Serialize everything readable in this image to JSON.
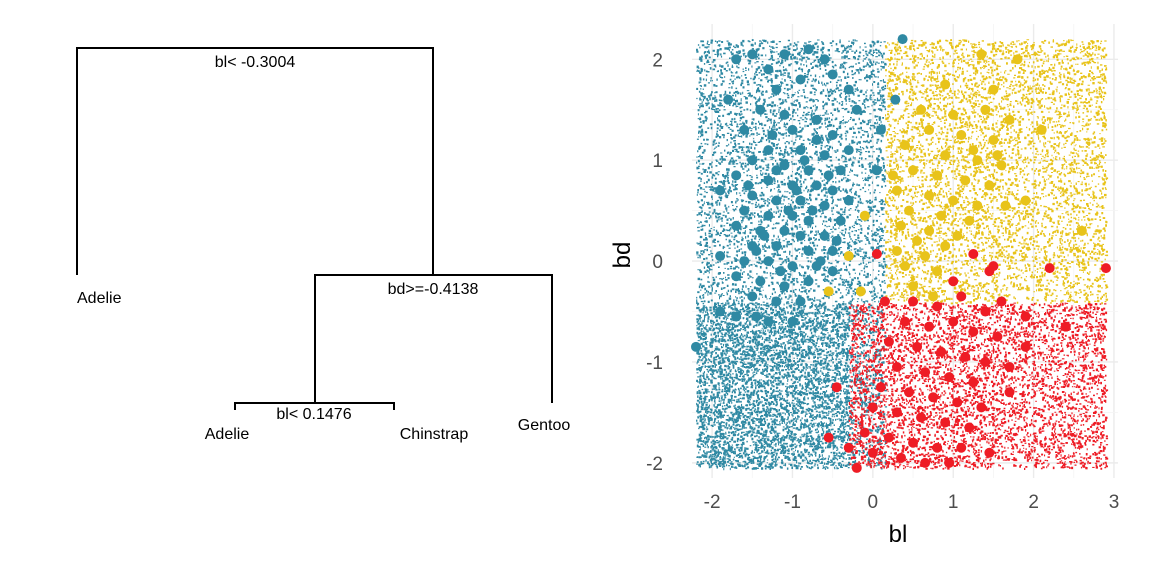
{
  "tree": {
    "splits": [
      {
        "id": "root",
        "label": "bl< -0.3004"
      },
      {
        "id": "right",
        "label": "bd>=-0.4138"
      },
      {
        "id": "left-of-right",
        "label": "bl< 0.1476"
      }
    ],
    "leaves": [
      {
        "id": "leaf-1",
        "label": "Adelie"
      },
      {
        "id": "leaf-2",
        "label": "Adelie"
      },
      {
        "id": "leaf-3",
        "label": "Chinstrap"
      },
      {
        "id": "leaf-4",
        "label": "Gentoo"
      }
    ]
  },
  "chart_data": {
    "type": "scatter",
    "xlabel": "bl",
    "ylabel": "bd",
    "xlim": [
      -2.25,
      3.05
    ],
    "ylim": [
      -2.15,
      2.35
    ],
    "x_ticks": [
      -2,
      -1,
      0,
      1,
      2,
      3
    ],
    "y_ticks": [
      -2,
      -1,
      0,
      1,
      2
    ],
    "x_tick_labels": [
      "-2",
      "-1",
      "0",
      "1",
      "2",
      "3"
    ],
    "y_tick_labels": [
      "-2",
      "-1",
      "0",
      "1",
      "2"
    ],
    "grid": true,
    "class_colors": {
      "Adelie": "#2f89a3",
      "Chinstrap": "#e8c31a",
      "Gentoo": "#ee1c25"
    },
    "regions": [
      {
        "class": "Adelie",
        "x": [
          -2.2,
          0.15
        ],
        "y": [
          -2.05,
          2.2
        ]
      },
      {
        "class": "Adelie",
        "x": [
          -2.2,
          -0.3
        ],
        "y": [
          -2.05,
          -0.41
        ]
      },
      {
        "class": "Chinstrap",
        "x": [
          0.15,
          2.9
        ],
        "y": [
          -0.41,
          2.2
        ]
      },
      {
        "class": "Gentoo",
        "x": [
          -0.3,
          2.9
        ],
        "y": [
          -2.05,
          -0.41
        ]
      }
    ],
    "series": [
      {
        "name": "Adelie",
        "color": "#2f89a3",
        "points": [
          [
            0.37,
            2.2
          ],
          [
            0.28,
            1.6
          ],
          [
            -2.2,
            -0.85
          ],
          [
            -1.7,
            2.0
          ],
          [
            -1.5,
            2.05
          ],
          [
            -1.1,
            2.05
          ],
          [
            -0.8,
            2.1
          ],
          [
            -0.6,
            2.0
          ],
          [
            -1.3,
            1.9
          ],
          [
            -0.9,
            1.8
          ],
          [
            -0.3,
            1.7
          ],
          [
            -0.5,
            1.85
          ],
          [
            -1.2,
            1.7
          ],
          [
            -1.4,
            1.5
          ],
          [
            -1.1,
            1.45
          ],
          [
            -0.7,
            1.4
          ],
          [
            -1.8,
            1.6
          ],
          [
            -0.2,
            1.5
          ],
          [
            0.1,
            1.3
          ],
          [
            -1.6,
            1.3
          ],
          [
            -1.0,
            1.3
          ],
          [
            -0.5,
            1.25
          ],
          [
            -1.3,
            1.1
          ],
          [
            -0.9,
            1.1
          ],
          [
            -0.6,
            1.05
          ],
          [
            -0.3,
            1.1
          ],
          [
            -1.5,
            1.0
          ],
          [
            -1.1,
            0.95
          ],
          [
            -0.8,
            0.9
          ],
          [
            -0.4,
            0.9
          ],
          [
            -1.7,
            0.85
          ],
          [
            -1.3,
            0.8
          ],
          [
            -1.0,
            0.75
          ],
          [
            -0.7,
            0.75
          ],
          [
            -0.5,
            0.7
          ],
          [
            -1.9,
            0.7
          ],
          [
            -1.5,
            0.65
          ],
          [
            -1.2,
            0.6
          ],
          [
            -0.9,
            0.6
          ],
          [
            -0.6,
            0.55
          ],
          [
            -0.3,
            0.6
          ],
          [
            -1.6,
            0.5
          ],
          [
            -1.3,
            0.45
          ],
          [
            -1.0,
            0.45
          ],
          [
            -0.8,
            0.4
          ],
          [
            -0.4,
            0.4
          ],
          [
            -1.7,
            0.35
          ],
          [
            -1.4,
            0.3
          ],
          [
            -1.1,
            0.3
          ],
          [
            -0.9,
            0.25
          ],
          [
            -0.6,
            0.25
          ],
          [
            -1.5,
            0.15
          ],
          [
            -1.2,
            0.15
          ],
          [
            -0.8,
            0.1
          ],
          [
            -0.5,
            0.1
          ],
          [
            -1.9,
            0.05
          ],
          [
            -1.6,
            0.0
          ],
          [
            -1.3,
            0.0
          ],
          [
            -1.0,
            -0.05
          ],
          [
            -0.7,
            -0.05
          ],
          [
            -0.5,
            -0.1
          ],
          [
            -1.7,
            -0.15
          ],
          [
            -1.4,
            -0.2
          ],
          [
            -1.1,
            -0.25
          ],
          [
            -0.8,
            -0.2
          ],
          [
            -1.5,
            -0.35
          ],
          [
            -1.2,
            -0.4
          ],
          [
            -0.9,
            -0.4
          ],
          [
            -1.7,
            -0.55
          ],
          [
            -1.3,
            -0.6
          ],
          [
            -1.0,
            -0.6
          ],
          [
            -1.45,
            -0.55
          ],
          [
            -1.2,
            0.9
          ],
          [
            -0.95,
            0.7
          ],
          [
            -1.05,
            0.5
          ],
          [
            -0.75,
            0.5
          ],
          [
            -1.35,
            0.25
          ],
          [
            -0.65,
            0.0
          ],
          [
            -1.15,
            -0.1
          ],
          [
            -0.85,
            1.0
          ],
          [
            -1.55,
            0.75
          ],
          [
            -0.45,
            0.2
          ],
          [
            -1.25,
            1.25
          ],
          [
            -0.55,
            0.85
          ],
          [
            -1.45,
            0.1
          ],
          [
            -0.7,
            1.2
          ],
          [
            0.05,
            0.9
          ],
          [
            -1.9,
            -0.5
          ]
        ]
      },
      {
        "name": "Chinstrap",
        "color": "#e8c31a",
        "points": [
          [
            1.35,
            2.05
          ],
          [
            1.8,
            2.0
          ],
          [
            0.9,
            1.75
          ],
          [
            1.5,
            1.7
          ],
          [
            0.6,
            1.5
          ],
          [
            1.0,
            1.45
          ],
          [
            1.4,
            1.5
          ],
          [
            1.7,
            1.4
          ],
          [
            2.1,
            1.3
          ],
          [
            0.7,
            1.3
          ],
          [
            1.1,
            1.25
          ],
          [
            1.5,
            1.2
          ],
          [
            0.4,
            1.15
          ],
          [
            0.9,
            1.05
          ],
          [
            1.3,
            1.0
          ],
          [
            1.6,
            0.95
          ],
          [
            0.5,
            0.9
          ],
          [
            0.8,
            0.85
          ],
          [
            1.15,
            0.8
          ],
          [
            1.45,
            0.75
          ],
          [
            0.3,
            0.7
          ],
          [
            0.7,
            0.65
          ],
          [
            1.0,
            0.6
          ],
          [
            1.3,
            0.55
          ],
          [
            1.65,
            0.55
          ],
          [
            0.45,
            0.5
          ],
          [
            0.85,
            0.45
          ],
          [
            1.2,
            0.4
          ],
          [
            0.35,
            0.35
          ],
          [
            0.7,
            0.3
          ],
          [
            1.05,
            0.25
          ],
          [
            0.55,
            0.2
          ],
          [
            0.9,
            0.15
          ],
          [
            0.3,
            0.1
          ],
          [
            0.65,
            0.05
          ],
          [
            0.4,
            -0.05
          ],
          [
            0.8,
            -0.1
          ],
          [
            0.5,
            -0.25
          ],
          [
            0.75,
            -0.35
          ],
          [
            -0.1,
            0.45
          ],
          [
            -0.3,
            0.05
          ],
          [
            -0.55,
            -0.3
          ],
          [
            -0.15,
            -0.3
          ],
          [
            0.25,
            0.85
          ],
          [
            1.25,
            1.1
          ],
          [
            2.6,
            0.3
          ],
          [
            1.9,
            0.6
          ],
          [
            1.55,
            1.05
          ]
        ]
      },
      {
        "name": "Gentoo",
        "color": "#ee1c25",
        "points": [
          [
            0.05,
            0.07
          ],
          [
            1.25,
            0.07
          ],
          [
            1.5,
            -0.05
          ],
          [
            2.2,
            -0.07
          ],
          [
            2.9,
            -0.07
          ],
          [
            1.0,
            -0.2
          ],
          [
            1.45,
            -0.1
          ],
          [
            0.5,
            -0.4
          ],
          [
            0.8,
            -0.45
          ],
          [
            1.1,
            -0.35
          ],
          [
            1.4,
            -0.5
          ],
          [
            1.9,
            -0.55
          ],
          [
            2.4,
            -0.65
          ],
          [
            0.4,
            -0.6
          ],
          [
            0.7,
            -0.65
          ],
          [
            1.0,
            -0.6
          ],
          [
            1.25,
            -0.7
          ],
          [
            1.55,
            -0.75
          ],
          [
            0.2,
            -0.8
          ],
          [
            0.55,
            -0.85
          ],
          [
            0.85,
            -0.9
          ],
          [
            1.15,
            -0.95
          ],
          [
            1.4,
            -1.0
          ],
          [
            1.7,
            -1.05
          ],
          [
            0.3,
            -1.05
          ],
          [
            0.65,
            -1.1
          ],
          [
            0.95,
            -1.15
          ],
          [
            1.25,
            -1.2
          ],
          [
            0.1,
            -1.25
          ],
          [
            0.45,
            -1.3
          ],
          [
            0.75,
            -1.35
          ],
          [
            1.05,
            -1.4
          ],
          [
            1.35,
            -1.45
          ],
          [
            -0.45,
            -1.25
          ],
          [
            0.0,
            -1.45
          ],
          [
            0.3,
            -1.5
          ],
          [
            0.6,
            -1.55
          ],
          [
            0.9,
            -1.6
          ],
          [
            1.2,
            -1.65
          ],
          [
            -0.1,
            -1.7
          ],
          [
            0.2,
            -1.75
          ],
          [
            0.5,
            -1.8
          ],
          [
            0.8,
            -1.85
          ],
          [
            1.1,
            -1.85
          ],
          [
            -0.3,
            -1.85
          ],
          [
            0.0,
            -1.9
          ],
          [
            0.35,
            -1.95
          ],
          [
            0.65,
            -2.0
          ],
          [
            0.95,
            -2.0
          ],
          [
            -0.55,
            -1.75
          ],
          [
            -0.2,
            -2.05
          ],
          [
            1.45,
            -1.9
          ],
          [
            1.7,
            -1.3
          ],
          [
            1.9,
            -0.85
          ],
          [
            0.15,
            -0.4
          ],
          [
            1.6,
            -0.4
          ]
        ]
      }
    ]
  }
}
